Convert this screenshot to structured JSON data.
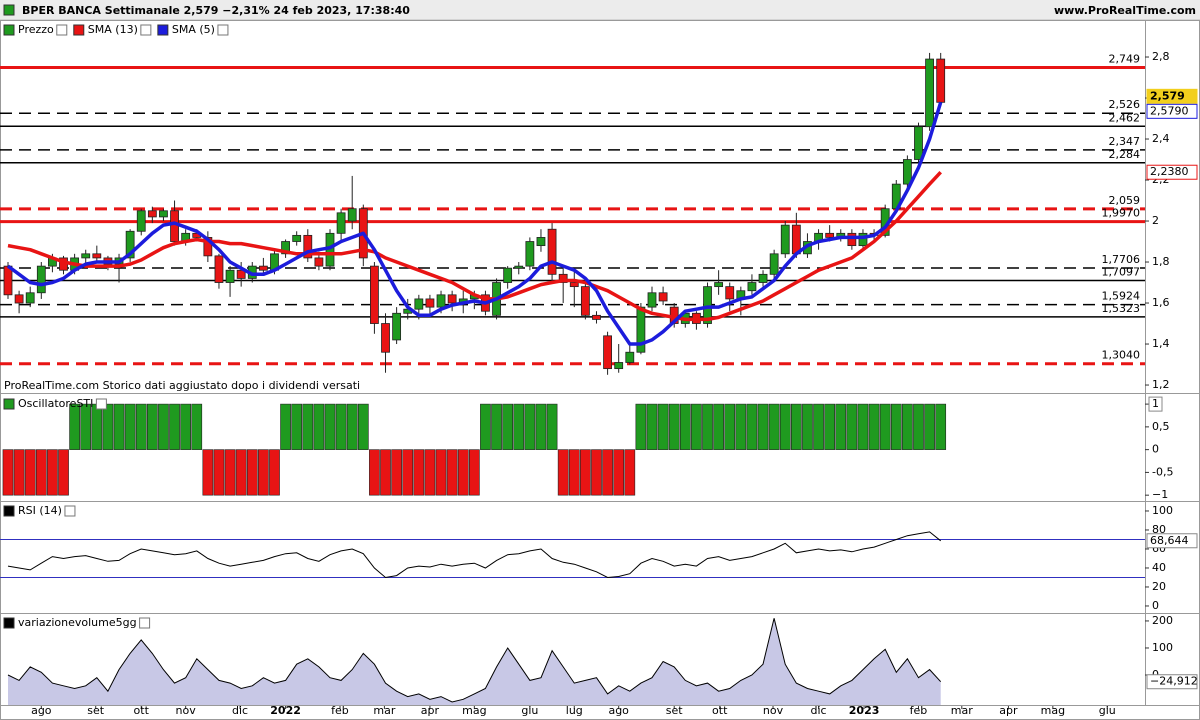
{
  "header": {
    "title": "BPER BANCA Settimanale 2,579 −2,31% 24 feb 2023, 17:38:40",
    "site": "www.ProRealTime.com"
  },
  "chart_data": [
    {
      "type": "candlestick",
      "note": "ProRealTime.com Storico dati aggiustato dopo i dividendi versati",
      "categories": [
        null,
        null,
        null,
        null,
        null,
        null,
        null,
        null,
        null,
        null,
        null,
        null,
        null,
        null,
        null,
        null,
        null,
        null,
        null,
        null,
        null,
        null,
        null,
        null,
        null,
        null,
        null,
        null,
        null,
        null,
        null,
        null,
        null,
        null,
        null,
        null,
        null,
        null,
        null,
        null,
        null,
        null,
        null,
        null,
        null,
        null,
        null,
        null,
        null,
        null,
        null,
        null,
        null,
        null,
        null,
        null,
        null,
        null,
        null,
        null,
        null,
        null,
        null,
        null,
        null,
        null,
        null,
        null,
        null,
        null,
        null,
        null,
        null,
        null,
        null,
        null,
        null,
        null,
        null,
        null,
        null,
        null,
        null,
        null,
        null
      ],
      "xlim": [
        -0.72,
        102.4
      ],
      "ylim": [
        1.166,
        2.883
      ],
      "yticks": [
        {
          "value": 1.2,
          "label": "1,2"
        },
        {
          "value": 1.4,
          "label": "1,4"
        },
        {
          "value": 1.6,
          "label": "1,6"
        },
        {
          "value": 1.8,
          "label": "1,8"
        },
        2,
        {
          "value": 2.2,
          "label": "2,2"
        },
        {
          "value": 2.4,
          "label": "2,4"
        },
        {
          "value": 2.6,
          "label": "2,6"
        },
        {
          "value": 2.8,
          "label": "2,8"
        }
      ],
      "series": [
        {
          "name": "Prezzo",
          "type": "candlestick",
          "up_color": "#1f9a1f",
          "down_color": "#e81414",
          "last_label": "2,579",
          "last_color": "#f2cf1d",
          "open": [
            1.78,
            1.64,
            1.6,
            1.65,
            1.78,
            1.82,
            1.76,
            1.82,
            1.84,
            1.82,
            1.79,
            1.82,
            1.95,
            2.05,
            2.02,
            2.05,
            1.9,
            1.94,
            1.92,
            1.83,
            1.7,
            1.76,
            1.72,
            1.78,
            1.76,
            1.84,
            1.9,
            1.93,
            1.82,
            1.78,
            1.94,
            2.0,
            2.06,
            1.78,
            1.5,
            1.42,
            1.55,
            1.57,
            1.62,
            1.58,
            1.64,
            1.6,
            1.62,
            1.64,
            1.54,
            1.7,
            1.77,
            1.78,
            1.88,
            1.96,
            1.74,
            1.7,
            1.68,
            1.54,
            1.44,
            1.28,
            1.31,
            1.36,
            1.58,
            1.65,
            1.58,
            1.5,
            1.55,
            1.5,
            1.68,
            1.68,
            1.62,
            1.66,
            1.7,
            1.74,
            1.84,
            1.98,
            1.84,
            1.9,
            1.94,
            1.92,
            1.94,
            1.88,
            1.94,
            1.93,
            2.06,
            2.18,
            2.3,
            2.46,
            2.79
          ],
          "high": [
            1.8,
            1.66,
            1.68,
            1.8,
            1.84,
            1.83,
            1.84,
            1.86,
            1.88,
            1.83,
            1.84,
            1.96,
            2.06,
            2.07,
            2.06,
            2.1,
            1.96,
            1.96,
            1.95,
            1.84,
            1.78,
            1.8,
            1.8,
            1.82,
            1.86,
            1.91,
            1.95,
            1.96,
            1.85,
            1.96,
            2.06,
            2.22,
            2.08,
            1.8,
            1.55,
            1.58,
            1.62,
            1.64,
            1.64,
            1.66,
            1.66,
            1.66,
            1.66,
            1.66,
            1.72,
            1.78,
            1.8,
            1.92,
            1.96,
            1.99,
            1.78,
            1.76,
            1.7,
            1.56,
            1.46,
            1.4,
            1.4,
            1.6,
            1.68,
            1.68,
            1.6,
            1.56,
            1.56,
            1.7,
            1.76,
            1.7,
            1.68,
            1.74,
            1.76,
            1.86,
            2.0,
            2.04,
            1.94,
            1.96,
            1.98,
            1.96,
            1.96,
            1.96,
            1.96,
            2.08,
            2.2,
            2.32,
            2.48,
            2.82,
            2.82
          ],
          "low": [
            1.62,
            1.55,
            1.58,
            1.62,
            1.75,
            1.74,
            1.74,
            1.78,
            1.8,
            1.76,
            1.7,
            1.8,
            1.93,
            1.99,
            2.0,
            1.88,
            1.88,
            1.9,
            1.8,
            1.67,
            1.63,
            1.68,
            1.7,
            1.74,
            1.74,
            1.82,
            1.88,
            1.8,
            1.76,
            1.76,
            1.9,
            1.96,
            1.78,
            1.45,
            1.26,
            1.4,
            1.52,
            1.52,
            1.54,
            1.55,
            1.56,
            1.55,
            1.57,
            1.54,
            1.52,
            1.67,
            1.74,
            1.76,
            1.85,
            1.7,
            1.6,
            1.58,
            1.52,
            1.5,
            1.25,
            1.26,
            1.3,
            1.35,
            1.56,
            1.59,
            1.48,
            1.48,
            1.47,
            1.48,
            1.64,
            1.56,
            1.54,
            1.64,
            1.68,
            1.72,
            1.82,
            1.82,
            1.82,
            1.86,
            1.9,
            1.9,
            1.86,
            1.87,
            1.9,
            1.92,
            2.04,
            2.16,
            2.28,
            2.44,
            2.56
          ],
          "close": [
            1.64,
            1.6,
            1.65,
            1.78,
            1.82,
            1.76,
            1.82,
            1.84,
            1.82,
            1.79,
            1.82,
            1.95,
            2.05,
            2.02,
            2.05,
            1.9,
            1.94,
            1.92,
            1.83,
            1.7,
            1.76,
            1.72,
            1.78,
            1.76,
            1.84,
            1.9,
            1.93,
            1.82,
            1.78,
            1.94,
            2.04,
            2.06,
            1.82,
            1.5,
            1.36,
            1.55,
            1.57,
            1.62,
            1.58,
            1.64,
            1.6,
            1.62,
            1.64,
            1.56,
            1.7,
            1.77,
            1.78,
            1.9,
            1.92,
            1.74,
            1.7,
            1.68,
            1.54,
            1.52,
            1.28,
            1.31,
            1.36,
            1.58,
            1.65,
            1.61,
            1.5,
            1.55,
            1.5,
            1.68,
            1.7,
            1.62,
            1.66,
            1.7,
            1.74,
            1.84,
            1.98,
            1.84,
            1.9,
            1.94,
            1.92,
            1.94,
            1.88,
            1.94,
            1.93,
            2.06,
            2.18,
            2.3,
            2.46,
            2.79,
            2.579
          ]
        },
        {
          "name": "SMA (13)",
          "color": "#e81414",
          "last_label": "2,2380",
          "values": [
            1.88,
            1.87,
            1.86,
            1.84,
            1.82,
            1.8,
            1.79,
            1.78,
            1.78,
            1.78,
            1.78,
            1.79,
            1.81,
            1.84,
            1.87,
            1.89,
            1.9,
            1.91,
            1.9,
            1.9,
            1.89,
            1.89,
            1.88,
            1.87,
            1.86,
            1.85,
            1.84,
            1.84,
            1.84,
            1.84,
            1.84,
            1.85,
            1.86,
            1.85,
            1.82,
            1.8,
            1.78,
            1.76,
            1.74,
            1.72,
            1.7,
            1.67,
            1.64,
            1.62,
            1.62,
            1.63,
            1.65,
            1.67,
            1.69,
            1.7,
            1.71,
            1.71,
            1.7,
            1.68,
            1.66,
            1.63,
            1.6,
            1.57,
            1.55,
            1.54,
            1.53,
            1.52,
            1.52,
            1.52,
            1.53,
            1.55,
            1.57,
            1.59,
            1.61,
            1.64,
            1.67,
            1.7,
            1.73,
            1.76,
            1.78,
            1.8,
            1.82,
            1.86,
            1.9,
            1.95,
            2.0,
            2.06,
            2.12,
            2.18,
            2.238
          ]
        },
        {
          "name": "SMA (5)",
          "color": "#1c1cdc",
          "last_label": "2,5790",
          "values": [
            1.78,
            1.74,
            1.7,
            1.69,
            1.7,
            1.72,
            1.76,
            1.79,
            1.8,
            1.8,
            1.8,
            1.84,
            1.89,
            1.94,
            1.98,
            1.99,
            1.97,
            1.95,
            1.91,
            1.86,
            1.8,
            1.77,
            1.74,
            1.74,
            1.76,
            1.79,
            1.82,
            1.85,
            1.86,
            1.87,
            1.9,
            1.92,
            1.94,
            1.86,
            1.76,
            1.66,
            1.58,
            1.54,
            1.54,
            1.57,
            1.59,
            1.6,
            1.61,
            1.6,
            1.62,
            1.65,
            1.68,
            1.72,
            1.78,
            1.8,
            1.78,
            1.76,
            1.72,
            1.66,
            1.56,
            1.48,
            1.4,
            1.4,
            1.42,
            1.46,
            1.51,
            1.56,
            1.57,
            1.58,
            1.58,
            1.6,
            1.62,
            1.63,
            1.67,
            1.71,
            1.78,
            1.84,
            1.88,
            1.9,
            1.91,
            1.92,
            1.92,
            1.92,
            1.93,
            1.97,
            2.05,
            2.15,
            2.26,
            2.4,
            2.579
          ]
        }
      ],
      "levels": [
        {
          "value": 2.749,
          "label": "2,749",
          "color": "#e81414",
          "style": "solid"
        },
        {
          "value": 2.526,
          "label": "2,526",
          "color": "#000000",
          "style": "dashed"
        },
        {
          "value": 2.462,
          "label": "2,462",
          "color": "#000000",
          "style": "solid"
        },
        {
          "value": 2.347,
          "label": "2,347",
          "color": "#000000",
          "style": "dashed"
        },
        {
          "value": 2.284,
          "label": "2,284",
          "color": "#000000",
          "style": "solid"
        },
        {
          "value": 2.059,
          "label": "2,059",
          "color": "#e81414",
          "style": "dashed"
        },
        {
          "value": 1.997,
          "label": "1,9970",
          "color": "#e81414",
          "style": "solid"
        },
        {
          "value": 1.7706,
          "label": "1,7706",
          "color": "#000000",
          "style": "dashed"
        },
        {
          "value": 1.7097,
          "label": "1,7097",
          "color": "#000000",
          "style": "solid"
        },
        {
          "value": 1.5924,
          "label": "1,5924",
          "color": "#000000",
          "style": "dashed"
        },
        {
          "value": 1.5323,
          "label": "1,5323",
          "color": "#000000",
          "style": "solid"
        },
        {
          "value": 1.304,
          "label": "1,3040",
          "color": "#e81414",
          "style": "dashed"
        }
      ]
    },
    {
      "type": "bar",
      "title": "OscillatoreSTI",
      "up_color": "#1f9a1f",
      "down_color": "#e81414",
      "xlim": [
        -0.72,
        102.4
      ],
      "ylim": [
        -1.15,
        1.2
      ],
      "yticks": [
        {
          "value": -1,
          "label": "−1"
        },
        {
          "value": -0.5,
          "label": "-0,5"
        },
        0,
        {
          "value": 0.5,
          "label": "0,5"
        },
        1
      ],
      "values": [
        -1,
        -1,
        -1,
        -1,
        -1,
        -1,
        1,
        1,
        1,
        1,
        1,
        1,
        1,
        1,
        1,
        1,
        1,
        1,
        -1,
        -1,
        -1,
        -1,
        -1,
        -1,
        -1,
        1,
        1,
        1,
        1,
        1,
        1,
        1,
        1,
        -1,
        -1,
        -1,
        -1,
        -1,
        -1,
        -1,
        -1,
        -1,
        -1,
        1,
        1,
        1,
        1,
        1,
        1,
        1,
        -1,
        -1,
        -1,
        -1,
        -1,
        -1,
        -1,
        1,
        1,
        1,
        1,
        1,
        1,
        1,
        1,
        1,
        1,
        1,
        1,
        1,
        1,
        1,
        1,
        1,
        1,
        1,
        1,
        1,
        1,
        1,
        1,
        1,
        1,
        1,
        1
      ]
    },
    {
      "type": "line",
      "title": "RSI (14)",
      "color": "#000000",
      "last_label": "68,644",
      "xlim": [
        -0.72,
        102.4
      ],
      "ylim": [
        -7.4,
        108.4
      ],
      "yticks": [
        0,
        20,
        40,
        60,
        80,
        100
      ],
      "levels": [
        {
          "value": 70,
          "color": "#3030c0"
        },
        {
          "value": 30,
          "color": "#3030c0"
        }
      ],
      "values": [
        42,
        40,
        38,
        45,
        52,
        50,
        52,
        53,
        50,
        47,
        48,
        55,
        60,
        58,
        56,
        54,
        55,
        58,
        50,
        45,
        42,
        44,
        46,
        48,
        52,
        55,
        56,
        50,
        47,
        54,
        58,
        60,
        55,
        40,
        30,
        32,
        40,
        42,
        41,
        44,
        42,
        44,
        45,
        40,
        48,
        54,
        55,
        58,
        60,
        50,
        46,
        44,
        40,
        36,
        30,
        31,
        34,
        45,
        50,
        47,
        42,
        44,
        42,
        50,
        52,
        48,
        50,
        52,
        56,
        60,
        66,
        56,
        58,
        60,
        58,
        59,
        57,
        60,
        62,
        66,
        70,
        74,
        76,
        78,
        68.644
      ]
    },
    {
      "type": "area",
      "title": "variazionevolume5gg",
      "color": "#000000",
      "fill": "#c8c8e6",
      "last_label": "−24,912",
      "xlim": [
        -0.72,
        102.4
      ],
      "ylim": [
        -111,
        222
      ],
      "yticks": [
        0,
        100,
        200
      ],
      "xticks": [
        {
          "value": 3.0,
          "label": "ago"
        },
        {
          "value": 7.9,
          "label": "set"
        },
        {
          "value": 12.0,
          "label": "ott"
        },
        {
          "value": 16.0,
          "label": "nov"
        },
        {
          "value": 20.9,
          "label": "dic"
        },
        {
          "value": 25.0,
          "label": "2022"
        },
        {
          "value": 29.9,
          "label": "feb"
        },
        {
          "value": 33.9,
          "label": "mar"
        },
        {
          "value": 38.0,
          "label": "apr"
        },
        {
          "value": 42.0,
          "label": "mag"
        },
        {
          "value": 47.0,
          "label": "giu"
        },
        {
          "value": 51.0,
          "label": "lug"
        },
        {
          "value": 55.0,
          "label": "ago"
        },
        {
          "value": 60.0,
          "label": "set"
        },
        {
          "value": 64.1,
          "label": "ott"
        },
        {
          "value": 68.9,
          "label": "nov"
        },
        {
          "value": 73.0,
          "label": "dic"
        },
        {
          "value": 77.1,
          "label": "2023"
        },
        {
          "value": 82.0,
          "label": "feb"
        },
        {
          "value": 85.9,
          "label": "mar"
        },
        {
          "value": 90.1,
          "label": "apr"
        },
        {
          "value": 94.1,
          "label": "mag"
        },
        {
          "value": 99.0,
          "label": "giu"
        }
      ],
      "values": [
        0,
        -20,
        30,
        10,
        -30,
        -40,
        -50,
        -40,
        -10,
        -60,
        20,
        80,
        130,
        80,
        20,
        -30,
        -10,
        60,
        20,
        -20,
        -30,
        -50,
        -40,
        -10,
        -30,
        -20,
        40,
        60,
        30,
        -10,
        -20,
        20,
        80,
        40,
        -30,
        -60,
        -80,
        -70,
        -90,
        -80,
        -100,
        -90,
        -70,
        -50,
        30,
        100,
        40,
        -20,
        -10,
        90,
        30,
        -30,
        -20,
        -10,
        -70,
        -40,
        -60,
        -30,
        -10,
        50,
        30,
        -20,
        -40,
        -30,
        -60,
        -50,
        -20,
        0,
        40,
        210,
        40,
        -30,
        -50,
        -60,
        -70,
        -40,
        -20,
        20,
        60,
        95,
        10,
        60,
        -10,
        20,
        -24.912
      ]
    }
  ]
}
